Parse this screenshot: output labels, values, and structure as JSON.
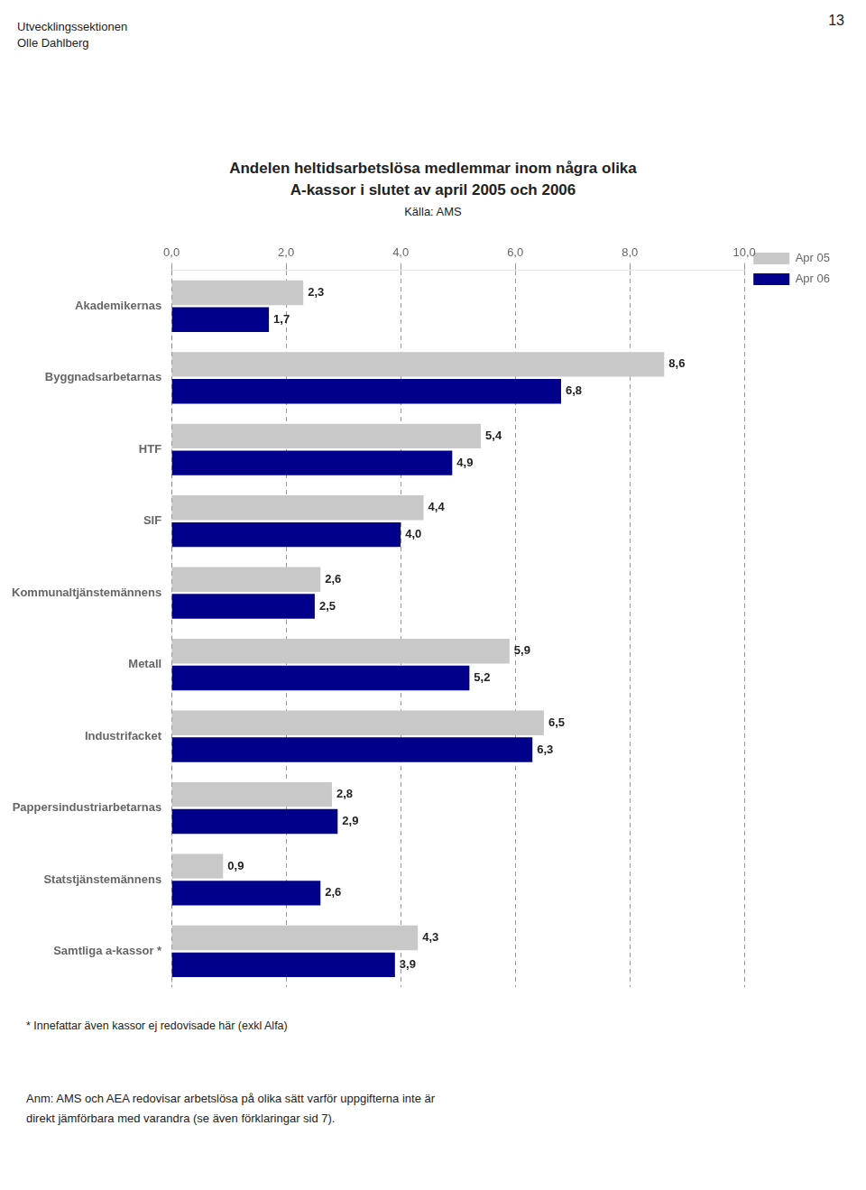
{
  "chart_data": {
    "type": "bar",
    "orientation": "horizontal",
    "title": [
      "Andelen heltidsarbetslösa medlemmar inom några olika",
      "A-kassor i slutet av april 2005 och 2006"
    ],
    "subtitle": "Källa: AMS",
    "annotations": [
      "Utvecklingssektionen",
      "Olle Dahlberg",
      "13",
      "* Innefattar även kassor ej redovisade här (exkl Alfa)",
      "Anm: AMS och AEA redovisar arbetslösa på olika sätt varför uppgifterna inte är",
      "direkt jämförbara med varandra (se även förklaringar sid 7)."
    ],
    "categories": [
      "Akademikernas",
      "Byggnadsarbetarnas",
      "HTF",
      "SIF",
      "Kommunaltjänstemännens",
      "Metall",
      "Industrifacket",
      "Pappersindustriarbetarnas",
      "Statstjänstemännens",
      "Samtliga a-kassor *"
    ],
    "series": [
      {
        "name": "Apr 05",
        "color": "#c8c8c8",
        "values": [
          2.3,
          8.6,
          5.4,
          4.4,
          2.6,
          5.9,
          6.5,
          2.8,
          0.9,
          4.3
        ],
        "value_labels": [
          "2,3",
          "8,6",
          "5,4",
          "4,4",
          "2,6",
          "5,9",
          "6,5",
          "2,8",
          "0,9",
          "4,3"
        ]
      },
      {
        "name": "Apr 06",
        "color": "#00008b",
        "values": [
          1.7,
          6.8,
          4.9,
          4.0,
          2.5,
          5.2,
          6.3,
          2.9,
          2.6,
          3.9
        ],
        "value_labels": [
          "1,7",
          "6,8",
          "4,9",
          "4,0",
          "2,5",
          "5,2",
          "6,3",
          "2,9",
          "2,6",
          "3,9"
        ]
      }
    ],
    "xlim": [
      0,
      10.0
    ],
    "xticks": [
      {
        "value": 0.0,
        "label": "0,0"
      },
      {
        "value": 2.0,
        "label": "2,0"
      },
      {
        "value": 4.0,
        "label": "4,0"
      },
      {
        "value": 6.0,
        "label": "6,0"
      },
      {
        "value": 8.0,
        "label": "8,0"
      },
      {
        "value": 10.0,
        "label": "10,0"
      }
    ],
    "grid": true,
    "legend": "right",
    "data_labels": true
  }
}
